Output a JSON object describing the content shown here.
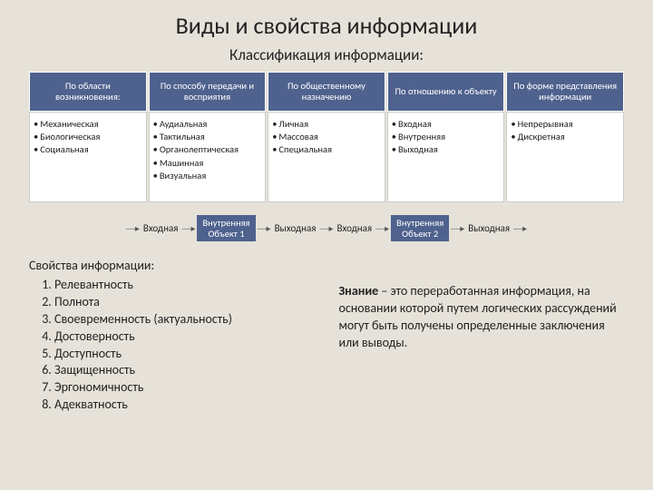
{
  "title": "Виды и свойства информации",
  "subtitle": "Классификация информации:",
  "columns": [
    {
      "head": "По области возникновения:",
      "items": [
        "Механическая",
        "Биологическая",
        "Социальная"
      ]
    },
    {
      "head": "По способу передачи и восприятия",
      "items": [
        "Аудиальная",
        "Тактильная",
        "Органолептическая",
        "Машинная",
        "Визуальная"
      ]
    },
    {
      "head": "По общественному назначению",
      "items": [
        "Личная",
        "Массовая",
        "Специальная"
      ]
    },
    {
      "head": "По отношению к объекту",
      "items": [
        "Входная",
        "Внутренняя",
        "Выходная"
      ]
    },
    {
      "head": "По форме представления информации",
      "items": [
        "Непрерывная",
        "Дискретная"
      ]
    }
  ],
  "flow": {
    "in": "Входная",
    "out": "Выходная",
    "box1_line1": "Внутренняя",
    "box1_line2": "Объект 1",
    "box2_line1": "Внутренняя",
    "box2_line2": "Объект 2"
  },
  "props_title": "Свойства информации:",
  "props": [
    "Релевантность",
    "Полнота",
    "Своевременность (актуальность)",
    "Достоверность",
    "Доступность",
    "Защищенность",
    "Эргономичность",
    "Адекватность"
  ],
  "def_bold": "Знание",
  "def_rest": " – это переработанная информация, на основании которой путем логических рассуждений могут быть получены определенные заключения или выводы."
}
